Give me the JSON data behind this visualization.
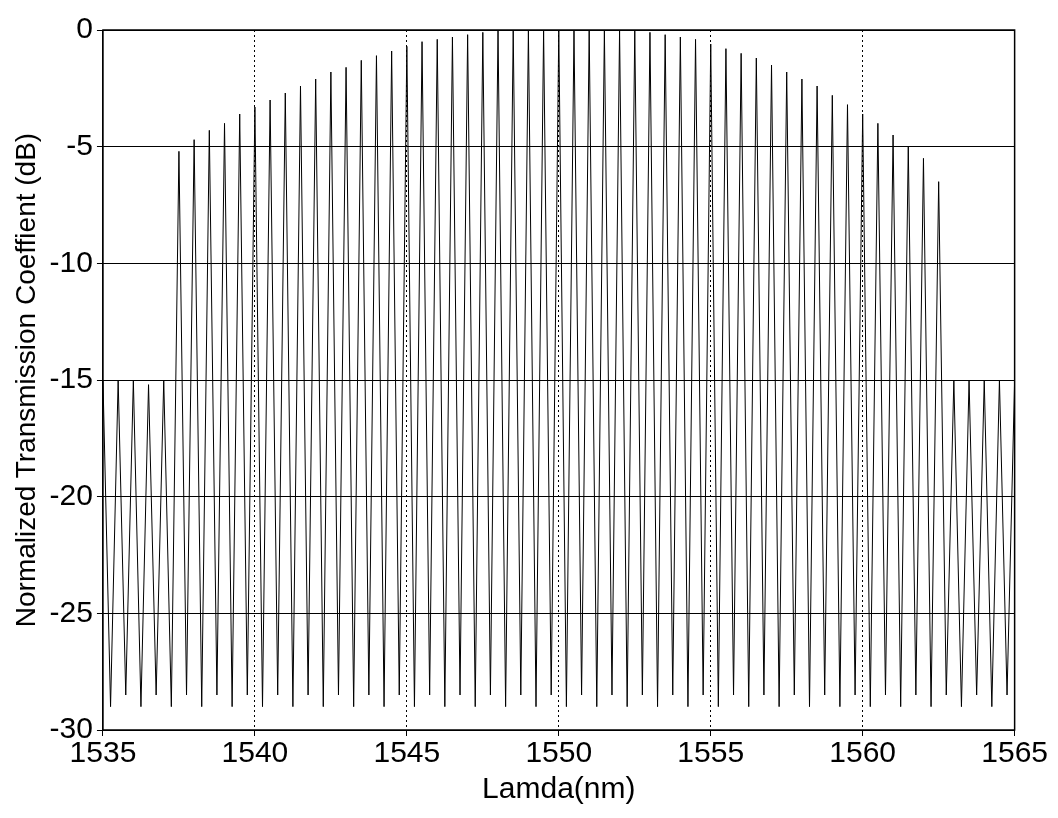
{
  "chart_data": {
    "type": "line",
    "xlabel": "Lamda(nm)",
    "ylabel": "Normalized Transmission Coeffient (dB)",
    "xlim": [
      1535,
      1565
    ],
    "xticks": [
      1535,
      1540,
      1545,
      1550,
      1555,
      1560,
      1565
    ],
    "ylim": [
      -30,
      0
    ],
    "yticks": [
      -30,
      -25,
      -20,
      -15,
      -10,
      -5,
      0
    ],
    "grid": true,
    "legend": false,
    "marker": "none",
    "line_style": "solid",
    "series": [
      {
        "color": "#000000",
        "x": [
          1535,
          1535.25,
          1535.5,
          1535.75,
          1536,
          1536.25,
          1536.5,
          1536.75,
          1537,
          1537.25,
          1537.5,
          1537.75,
          1538,
          1538.25,
          1538.5,
          1538.75,
          1539,
          1539.25,
          1539.5,
          1539.75,
          1540,
          1540.25,
          1540.5,
          1540.75,
          1541,
          1541.25,
          1541.5,
          1541.75,
          1542,
          1542.25,
          1542.5,
          1542.75,
          1543,
          1543.25,
          1543.5,
          1543.75,
          1544,
          1544.25,
          1544.5,
          1544.75,
          1545,
          1545.25,
          1545.5,
          1545.75,
          1546,
          1546.25,
          1546.5,
          1546.75,
          1547,
          1547.25,
          1547.5,
          1547.75,
          1548,
          1548.25,
          1548.5,
          1548.75,
          1549,
          1549.25,
          1549.5,
          1549.75,
          1550,
          1550.25,
          1550.5,
          1550.75,
          1551,
          1551.25,
          1551.5,
          1551.75,
          1552,
          1552.25,
          1552.5,
          1552.75,
          1553,
          1553.25,
          1553.5,
          1553.75,
          1554,
          1554.25,
          1554.5,
          1554.75,
          1555,
          1555.25,
          1555.5,
          1555.75,
          1556,
          1556.25,
          1556.5,
          1556.75,
          1557,
          1557.25,
          1557.5,
          1557.75,
          1558,
          1558.25,
          1558.5,
          1558.75,
          1559,
          1559.25,
          1559.5,
          1559.75,
          1560,
          1560.25,
          1560.5,
          1560.75,
          1561,
          1561.25,
          1561.5,
          1561.75,
          1562,
          1562.25,
          1562.5,
          1562.75,
          1563,
          1563.25,
          1563.5,
          1563.75,
          1564,
          1564.25,
          1564.5,
          1564.75,
          1565
        ],
        "values": [
          -15,
          -29,
          -15,
          -28.5,
          -15,
          -29,
          -15.2,
          -28.5,
          -15,
          -29,
          -5.2,
          -28.5,
          -4.7,
          -29,
          -4.3,
          -28.5,
          -4,
          -29,
          -3.6,
          -28.5,
          -3.3,
          -29,
          -3,
          -28.5,
          -2.7,
          -29,
          -2.4,
          -28.5,
          -2.1,
          -29,
          -1.8,
          -28.5,
          -1.6,
          -29,
          -1.3,
          -28.5,
          -1.1,
          -29,
          -0.9,
          -28.5,
          -0.7,
          -29,
          -0.5,
          -28.5,
          -0.4,
          -29,
          -0.3,
          -28.5,
          -0.2,
          -29,
          -0.1,
          -28.5,
          0,
          -29,
          0,
          -28.5,
          0,
          -29,
          0,
          -28.5,
          0,
          -29,
          0,
          -28.5,
          0,
          -29,
          0,
          -28.5,
          0,
          -29,
          0,
          -28.5,
          -0.1,
          -29,
          -0.2,
          -28.5,
          -0.3,
          -29,
          -0.4,
          -28.5,
          -0.6,
          -29,
          -0.8,
          -28.5,
          -1,
          -29,
          -1.2,
          -28.5,
          -1.5,
          -29,
          -1.8,
          -28.5,
          -2.1,
          -29,
          -2.4,
          -28.5,
          -2.8,
          -29,
          -3.2,
          -28.5,
          -3.6,
          -29,
          -4,
          -28.5,
          -4.5,
          -29,
          -5,
          -28.5,
          -5.5,
          -29,
          -6.5,
          -28.5,
          -15,
          -29,
          -15,
          -28.5,
          -15,
          -29,
          -15,
          -28.5,
          -15
        ]
      }
    ]
  }
}
